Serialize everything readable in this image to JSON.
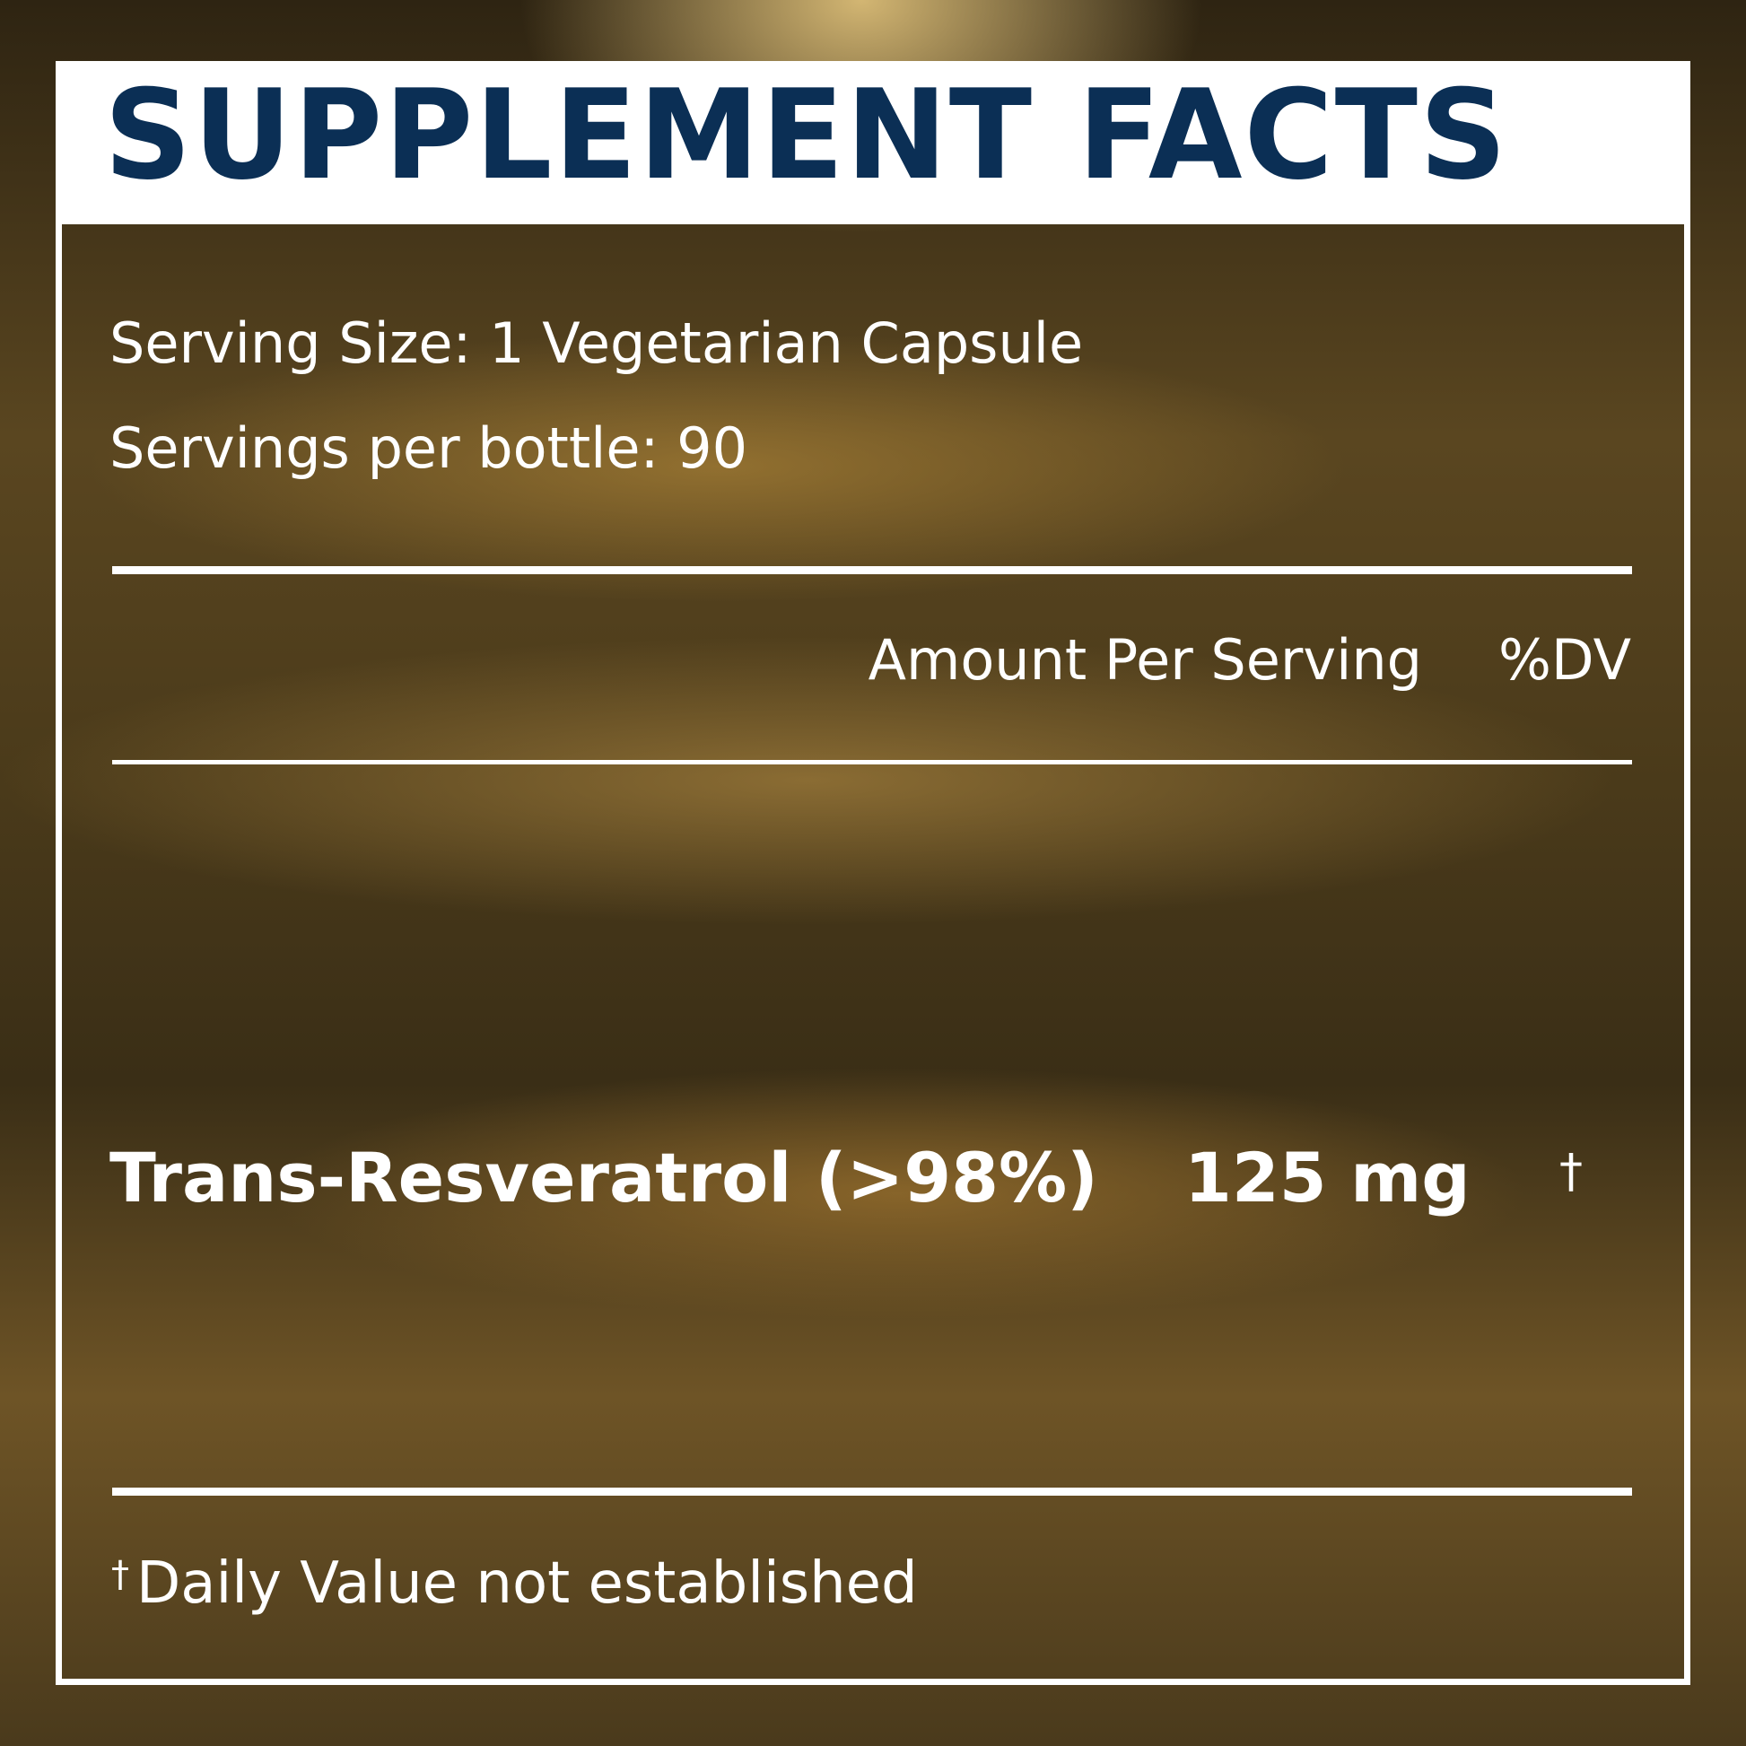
{
  "title": "SUPPLEMENT FACTS",
  "serving_size": "Serving Size: 1 Vegetarian Capsule",
  "servings_per_bottle": "Servings per bottle: 90",
  "columns": {
    "amount": "Amount Per Serving",
    "dv": "%DV"
  },
  "ingredients": [
    {
      "name": "Trans-Resveratrol (>98%)",
      "amount": "125 mg",
      "dv": "†"
    }
  ],
  "footnote": {
    "mark": "†",
    "text": "Daily Value not established"
  },
  "colors": {
    "title": "#0b2f55",
    "text": "#ffffff"
  }
}
